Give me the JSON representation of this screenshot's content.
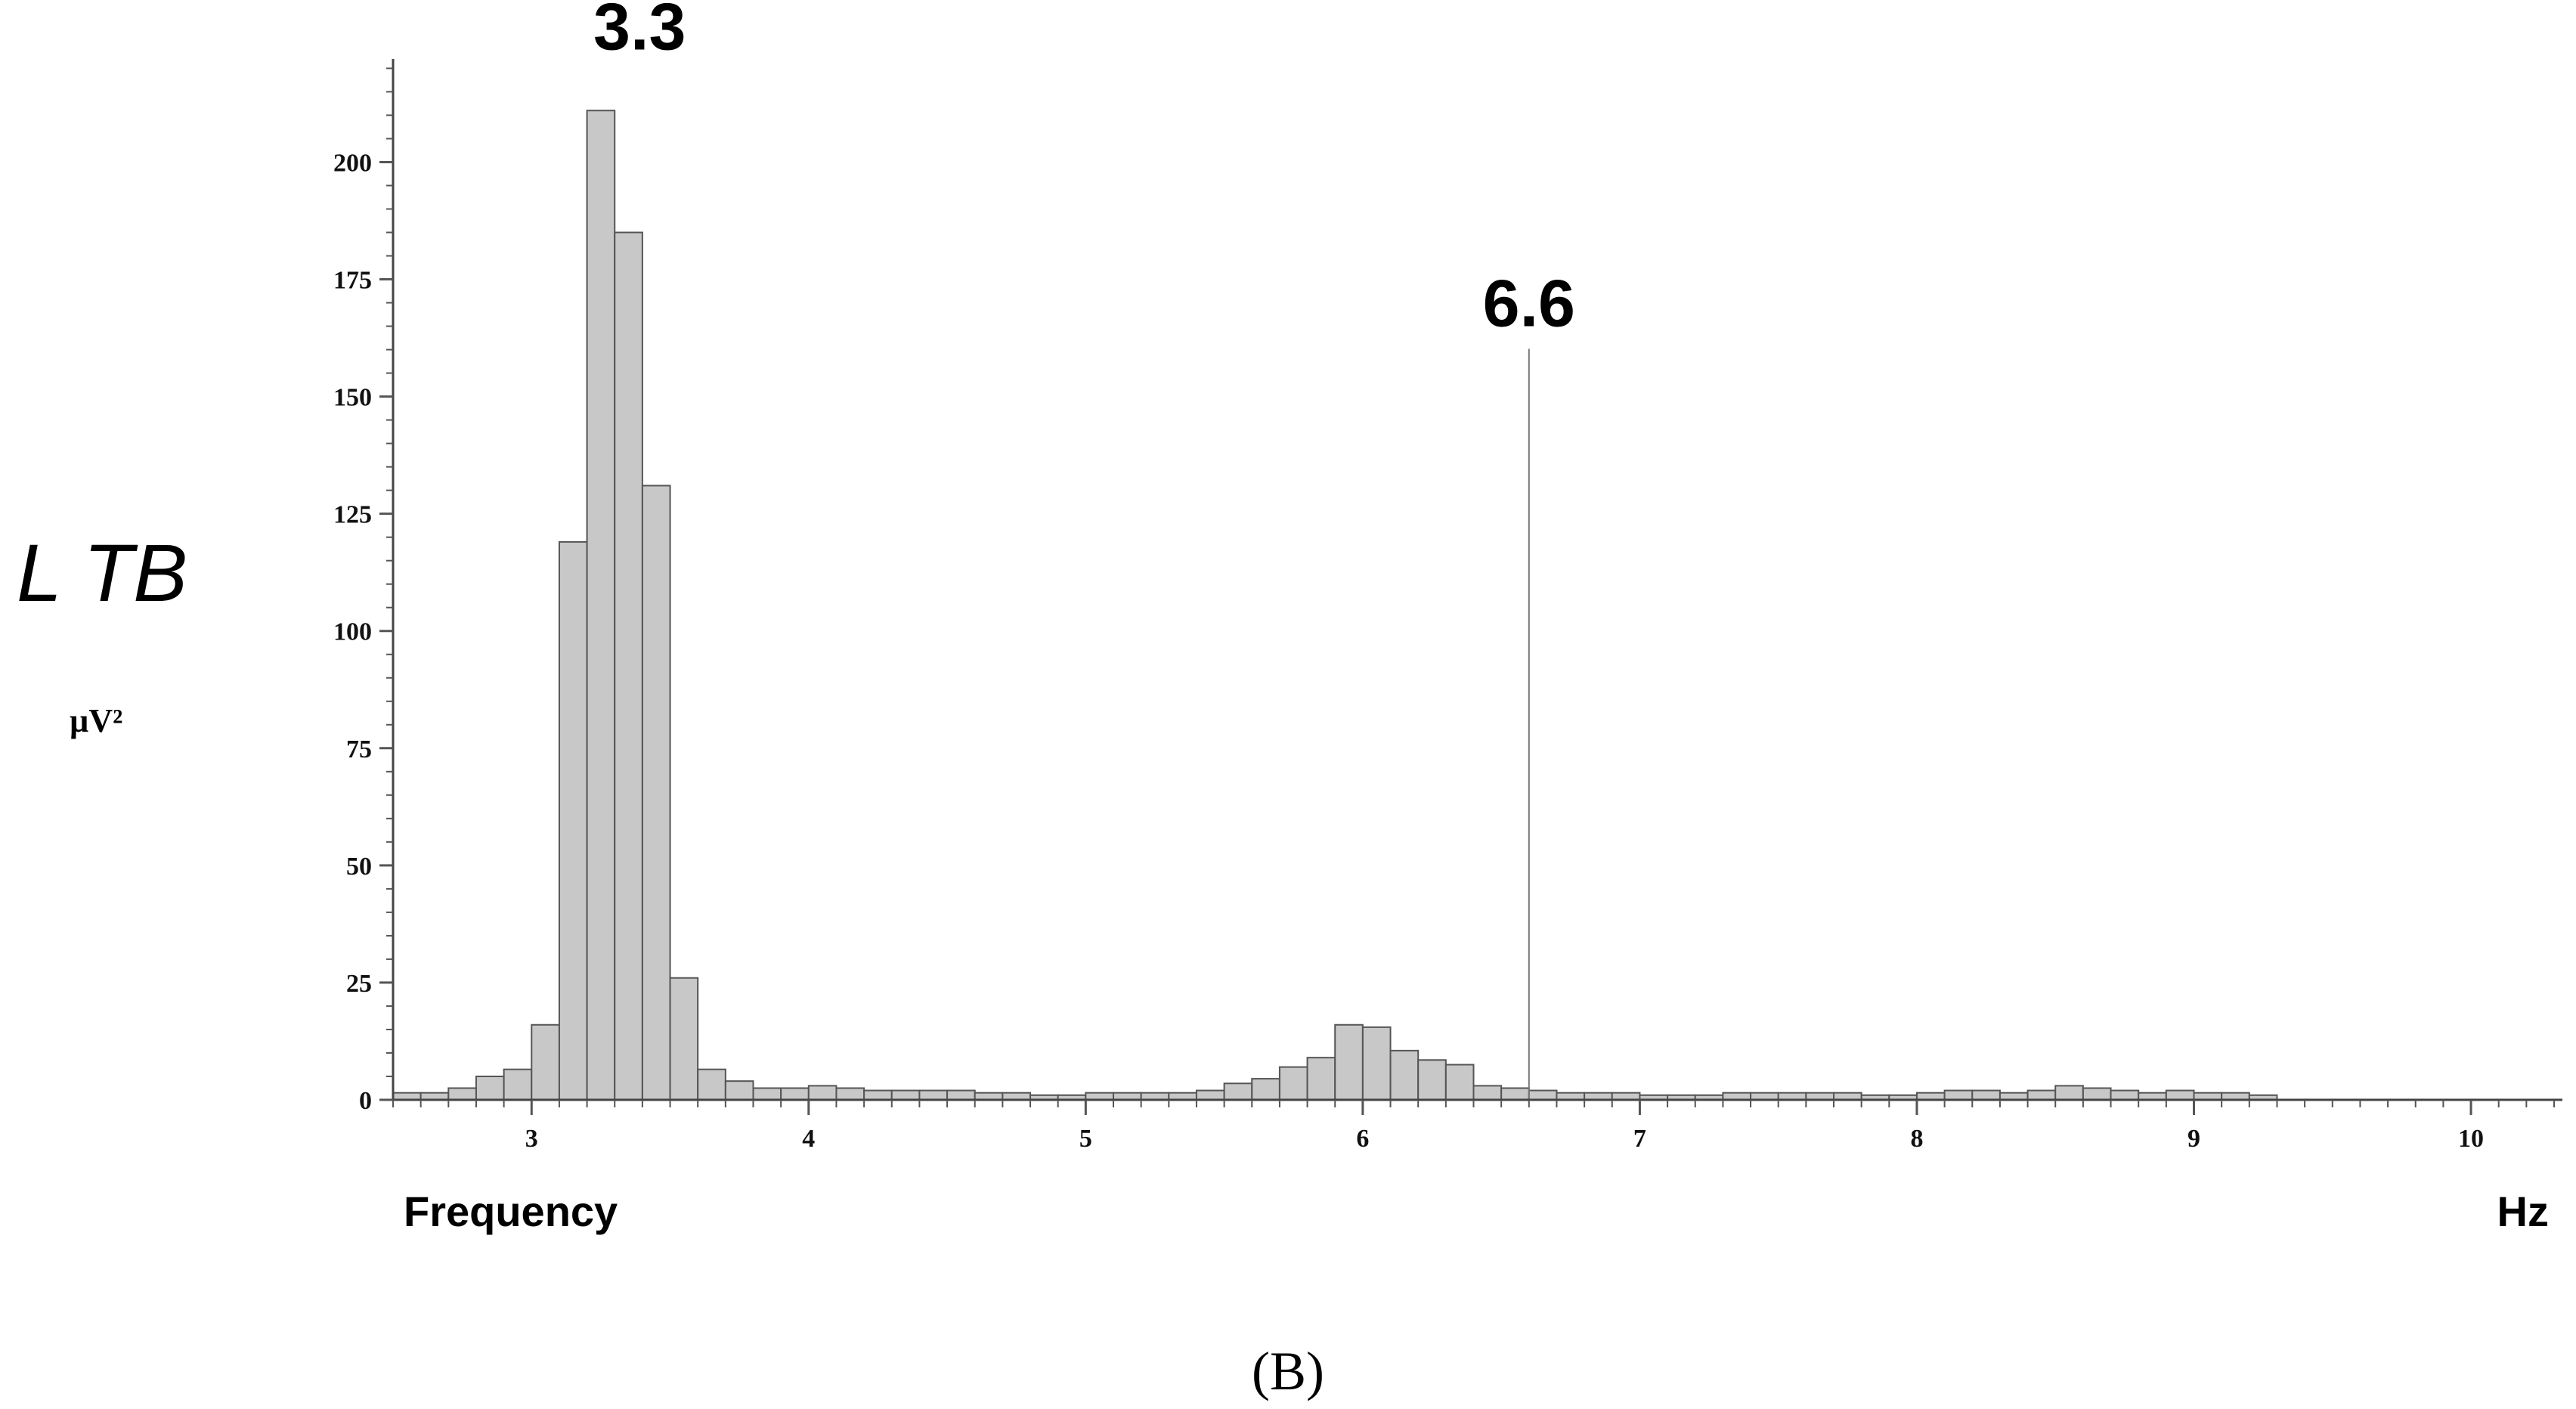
{
  "chart_data": {
    "type": "bar",
    "channel_label": "L TB",
    "ylabel": "µV²",
    "xlabel": "Frequency",
    "xunit": "Hz",
    "panel_label": "(B)",
    "xlim": [
      2.5,
      10.33
    ],
    "ylim": [
      0,
      222
    ],
    "y_ticks": [
      0,
      25,
      50,
      75,
      100,
      125,
      150,
      175,
      200
    ],
    "x_ticks": [
      3,
      4,
      5,
      6,
      7,
      8,
      9,
      10
    ],
    "bin_start": 2.5,
    "bin_width": 0.1,
    "values": [
      1.5,
      1.5,
      2.5,
      5,
      6.5,
      16,
      119,
      211,
      185,
      131,
      26,
      6.5,
      4,
      2.5,
      2.5,
      3,
      2.5,
      2,
      2,
      2,
      2,
      1.5,
      1.5,
      1,
      1,
      1.5,
      1.5,
      1.5,
      1.5,
      2,
      3.5,
      4.5,
      7,
      9,
      16,
      15.5,
      10.5,
      8.5,
      7.5,
      3,
      2.5,
      2,
      1.5,
      1.5,
      1.5,
      1,
      1,
      1,
      1.5,
      1.5,
      1.5,
      1.5,
      1.5,
      1,
      1,
      1.5,
      2,
      2,
      1.5,
      2,
      3,
      2.5,
      2,
      1.5,
      2,
      1.5,
      1.5,
      1
    ],
    "annotations": [
      {
        "text": "3.3",
        "x": 3.39,
        "y": 224,
        "marker_line": false
      },
      {
        "text": "6.6",
        "x": 6.6,
        "y": 165,
        "marker_line": true
      }
    ],
    "bar_fill": "#c8c8c8",
    "bar_stroke": "#555555",
    "marker_color": "#777777"
  }
}
